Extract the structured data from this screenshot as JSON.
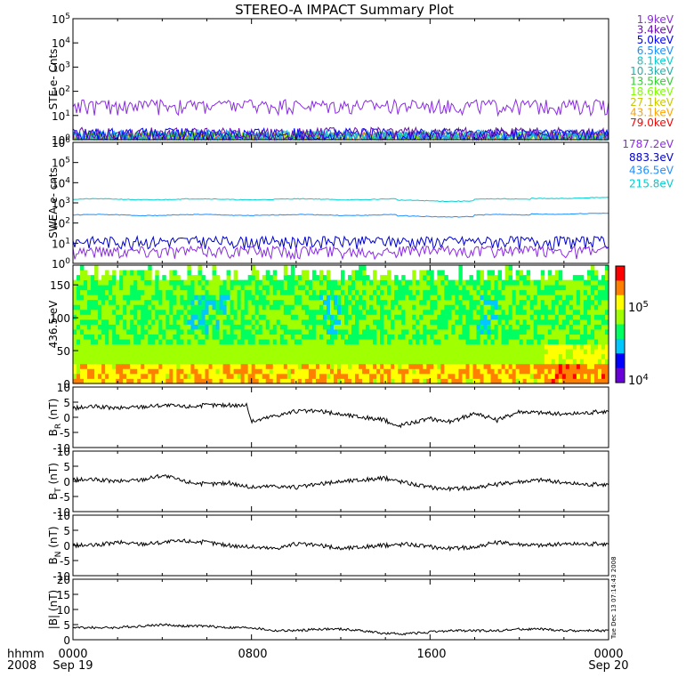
{
  "title": "STEREO-A IMPACT Summary Plot",
  "footer": {
    "time_label": "hhmm",
    "year_label": "2008",
    "ticks": [
      "0000",
      "0800",
      "1600",
      "0000"
    ],
    "dates": [
      "Sep 19",
      "Sep 20"
    ]
  },
  "timestamp": "Tue Dec 13 07:14:43 2008",
  "colorbar": {
    "tick_labels": [
      "10^5",
      "10^4"
    ],
    "colors": [
      "#6a00d8",
      "#0000ff",
      "#00c8ff",
      "#00ff60",
      "#a0ff00",
      "#ffff00",
      "#ff8000",
      "#ff0000"
    ]
  },
  "chart_data": [
    {
      "type": "line",
      "panel": "ste",
      "ylabel": "STE e- Cnts",
      "yscale": "log",
      "ylim": [
        1,
        100000
      ],
      "yticks": [
        "10^0",
        "10^1",
        "10^2",
        "10^3",
        "10^4",
        "10^5"
      ],
      "xlim_hours": [
        0,
        24
      ],
      "legend": "right-outside",
      "series": [
        {
          "name": "1.9keV",
          "color": "#8a2be2",
          "level": 25
        },
        {
          "name": "3.4keV",
          "color": "#6a0dad",
          "level": 1.6
        },
        {
          "name": "5.0keV",
          "color": "#0000ff",
          "level": 1.5
        },
        {
          "name": "6.5keV",
          "color": "#1e90ff",
          "level": 1.3
        },
        {
          "name": "8.1keV",
          "color": "#00ced1",
          "level": 1.2
        },
        {
          "name": "10.3keV",
          "color": "#20b2aa",
          "level": 1.1
        },
        {
          "name": "13.5keV",
          "color": "#32cd32",
          "level": 1.05
        },
        {
          "name": "18.6keV",
          "color": "#7fff00",
          "level": 1.0
        },
        {
          "name": "27.1keV",
          "color": "#c8c800",
          "level": 1.0
        },
        {
          "name": "43.1keV",
          "color": "#ffa500",
          "level": 1.0
        },
        {
          "name": "79.0keV",
          "color": "#ff0000",
          "level": 1.0
        }
      ]
    },
    {
      "type": "line",
      "panel": "swea",
      "ylabel": "SWEA e- cnts",
      "yscale": "log",
      "ylim": [
        1,
        1000000
      ],
      "yticks": [
        "10^0",
        "10^1",
        "10^2",
        "10^3",
        "10^4",
        "10^5",
        "10^6"
      ],
      "xlim_hours": [
        0,
        24
      ],
      "legend": "right-outside",
      "series": [
        {
          "name": "1787.2eV",
          "color": "#8a2be2",
          "level": 4
        },
        {
          "name": "883.3eV",
          "color": "#0000cd",
          "level": 12
        },
        {
          "name": "436.5eV",
          "color": "#1e90ff",
          "level": 250
        },
        {
          "name": "215.8eV",
          "color": "#00ced1",
          "level": 1500
        }
      ]
    },
    {
      "type": "heatmap",
      "panel": "pad",
      "ylabel": "436.5 eV",
      "ylim": [
        0,
        180
      ],
      "yticks": [
        "0",
        "50",
        "100",
        "150"
      ],
      "xlim_hours": [
        0,
        24
      ],
      "colorbar_range": [
        10000,
        300000
      ]
    },
    {
      "type": "line",
      "panel": "br",
      "ylabel": "B_R (nT)",
      "ylim": [
        -10,
        10
      ],
      "yticks": [
        "10",
        "5",
        "0",
        "-5",
        "-10"
      ],
      "xlim_hours": [
        0,
        24
      ],
      "x": [
        0,
        1,
        2,
        3,
        4,
        5,
        6,
        7,
        7.8,
        8,
        9,
        10,
        11,
        12,
        13,
        14,
        14.5,
        15,
        16,
        17,
        18,
        19,
        20,
        21,
        22,
        23,
        24
      ],
      "values": [
        3,
        3.5,
        3,
        3.5,
        4,
        3.5,
        4,
        4,
        4,
        -1.5,
        0.5,
        2,
        2,
        1,
        0,
        -1,
        -3,
        -2,
        -0.5,
        -1.5,
        1.5,
        -1,
        2,
        1.5,
        1,
        1.5,
        2
      ]
    },
    {
      "type": "line",
      "panel": "bt",
      "ylabel": "B_T (nT)",
      "ylim": [
        -10,
        10
      ],
      "yticks": [
        "10",
        "5",
        "0",
        "-5",
        "-10"
      ],
      "xlim_hours": [
        0,
        24
      ],
      "x": [
        0,
        1,
        2,
        3,
        4,
        5,
        6,
        7,
        8,
        9,
        10,
        11,
        12,
        13,
        14,
        15,
        16,
        17,
        18,
        19,
        20,
        21,
        22,
        23,
        24
      ],
      "values": [
        0.5,
        0.5,
        0,
        0.5,
        2,
        0,
        -1,
        -0.5,
        -2,
        -1.5,
        -2,
        -1,
        0,
        0.5,
        1,
        -0.5,
        -2,
        -2.5,
        -2,
        -1,
        0,
        0.5,
        -0.5,
        -1,
        -1
      ]
    },
    {
      "type": "line",
      "panel": "bn",
      "ylabel": "B_N (nT)",
      "ylim": [
        -10,
        10
      ],
      "yticks": [
        "10",
        "5",
        "0",
        "-5",
        "-10"
      ],
      "xlim_hours": [
        0,
        24
      ],
      "x": [
        0,
        1,
        2,
        3,
        4,
        5,
        6,
        7,
        8,
        9,
        10,
        11,
        12,
        13,
        14,
        15,
        16,
        17,
        18,
        19,
        20,
        21,
        22,
        23,
        24
      ],
      "values": [
        0,
        0,
        1,
        0.5,
        1,
        1.5,
        1,
        0,
        -0.5,
        -1,
        0.5,
        0,
        -1,
        -0.5,
        0,
        0.5,
        -0.5,
        -1,
        -0.5,
        1,
        0.5,
        0,
        0.5,
        0.5,
        0.5
      ]
    },
    {
      "type": "line",
      "panel": "bmag",
      "ylabel": "|B| (nT)",
      "ylim": [
        0,
        20
      ],
      "yticks": [
        "20",
        "15",
        "10",
        "5",
        "0"
      ],
      "xlim_hours": [
        0,
        24
      ],
      "x": [
        0,
        1,
        2,
        3,
        4,
        5,
        6,
        7,
        8,
        9,
        10,
        11,
        12,
        13,
        14,
        15,
        16,
        17,
        18,
        19,
        20,
        21,
        22,
        23,
        24
      ],
      "values": [
        4,
        4,
        4,
        4.5,
        5,
        4.5,
        4.5,
        4,
        4,
        3,
        3,
        3.5,
        3.5,
        3,
        2,
        2,
        2.5,
        3,
        3,
        3,
        3.5,
        3.5,
        3,
        3,
        3
      ]
    }
  ]
}
